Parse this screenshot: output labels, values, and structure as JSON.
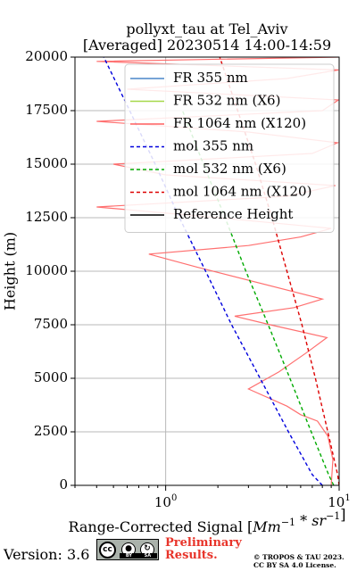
{
  "chart_data": {
    "type": "line",
    "title": "pollyxt_tau at Tel_Aviv",
    "subtitle": "[Averaged] 20230514 14:00-14:59",
    "xlabel": "Range-Corrected Signal [Mm^-1 * sr^-1]",
    "ylabel": "Height (m)",
    "xscale": "log",
    "xlim": [
      0.3,
      10
    ],
    "ylim": [
      0,
      20000
    ],
    "x_ticks": [
      1,
      10
    ],
    "x_tick_labels": [
      "10^0",
      "10^1"
    ],
    "y_ticks": [
      0,
      2500,
      5000,
      7500,
      10000,
      12500,
      15000,
      17500,
      20000
    ],
    "y_tick_labels": [
      "0",
      "2500",
      "5000",
      "7500",
      "10000",
      "12500",
      "15000",
      "17500",
      "20000"
    ],
    "grid": true,
    "legend_position": "top-right",
    "series": [
      {
        "name": "FR 355 nm",
        "color": "#4a86c8",
        "style": "solid",
        "x": [],
        "y": []
      },
      {
        "name": "FR 532 nm (X6)",
        "color": "#a6d84a",
        "style": "solid",
        "x": [],
        "y": []
      },
      {
        "name": "FR 1064 nm (X120)",
        "color": "#ff6060",
        "style": "solid",
        "x": [
          9.0,
          9.2,
          8.6,
          7.5,
          6.0,
          5.0,
          3.0,
          4.5,
          6.5,
          8.5,
          4.0,
          2.5,
          5.5,
          8.0,
          1.5,
          0.8,
          3.0,
          6.0,
          9.0,
          2.0,
          0.4,
          5.0,
          9.5,
          1.0,
          0.5,
          7.0,
          9.8,
          3.0,
          0.4,
          8.0,
          9.9,
          0.6,
          5.0,
          9.9,
          0.4,
          9.9
        ],
        "y": [
          0,
          1200,
          2300,
          3000,
          3300,
          3700,
          4500,
          5300,
          6200,
          6900,
          7500,
          7900,
          8300,
          8700,
          10200,
          10800,
          11200,
          11600,
          12000,
          12500,
          13000,
          13500,
          14000,
          14500,
          15000,
          15500,
          16000,
          16500,
          17000,
          17500,
          18000,
          18500,
          19000,
          19400,
          19800,
          20000
        ]
      },
      {
        "name": "mol 355 nm",
        "color": "#0000dd",
        "style": "dashed",
        "x": [
          8.0,
          7.0,
          5.1,
          3.5,
          2.4,
          1.7,
          1.2,
          0.87,
          0.62,
          0.44,
          0.33
        ],
        "y": [
          0,
          500,
          2500,
          5000,
          7500,
          10000,
          12500,
          15000,
          17500,
          20000,
          22500
        ]
      },
      {
        "name": "mol 532 nm (X6)",
        "color": "#00aa00",
        "style": "dashed",
        "x": [
          9.3,
          8.7,
          6.9,
          5.2,
          3.9,
          2.9,
          2.2,
          1.65,
          1.25
        ],
        "y": [
          0,
          500,
          2500,
          5000,
          7500,
          10000,
          12500,
          15000,
          17500
        ]
      },
      {
        "name": "mol 1064 nm (X120)",
        "color": "#dd0000",
        "style": "dashed",
        "x": [
          10.0,
          9.8,
          8.6,
          7.3,
          6.1,
          5.0,
          4.1,
          3.3,
          2.6,
          2.05,
          1.6
        ],
        "y": [
          0,
          500,
          2500,
          5000,
          7500,
          10000,
          12500,
          15000,
          17500,
          20000,
          22000
        ]
      },
      {
        "name": "Reference Height",
        "color": "#000000",
        "style": "solid",
        "x": [],
        "y": []
      }
    ]
  },
  "footer": {
    "version": "Version: 3.6",
    "license_badge": {
      "cc": "cc",
      "by": "BY",
      "sa": "SA"
    },
    "preliminary_line1": "Preliminary",
    "preliminary_line2": "Results.",
    "copyright_line1": "© TROPOS & TAU 2023.",
    "copyright_line2": "CC BY SA 4.0 License."
  }
}
